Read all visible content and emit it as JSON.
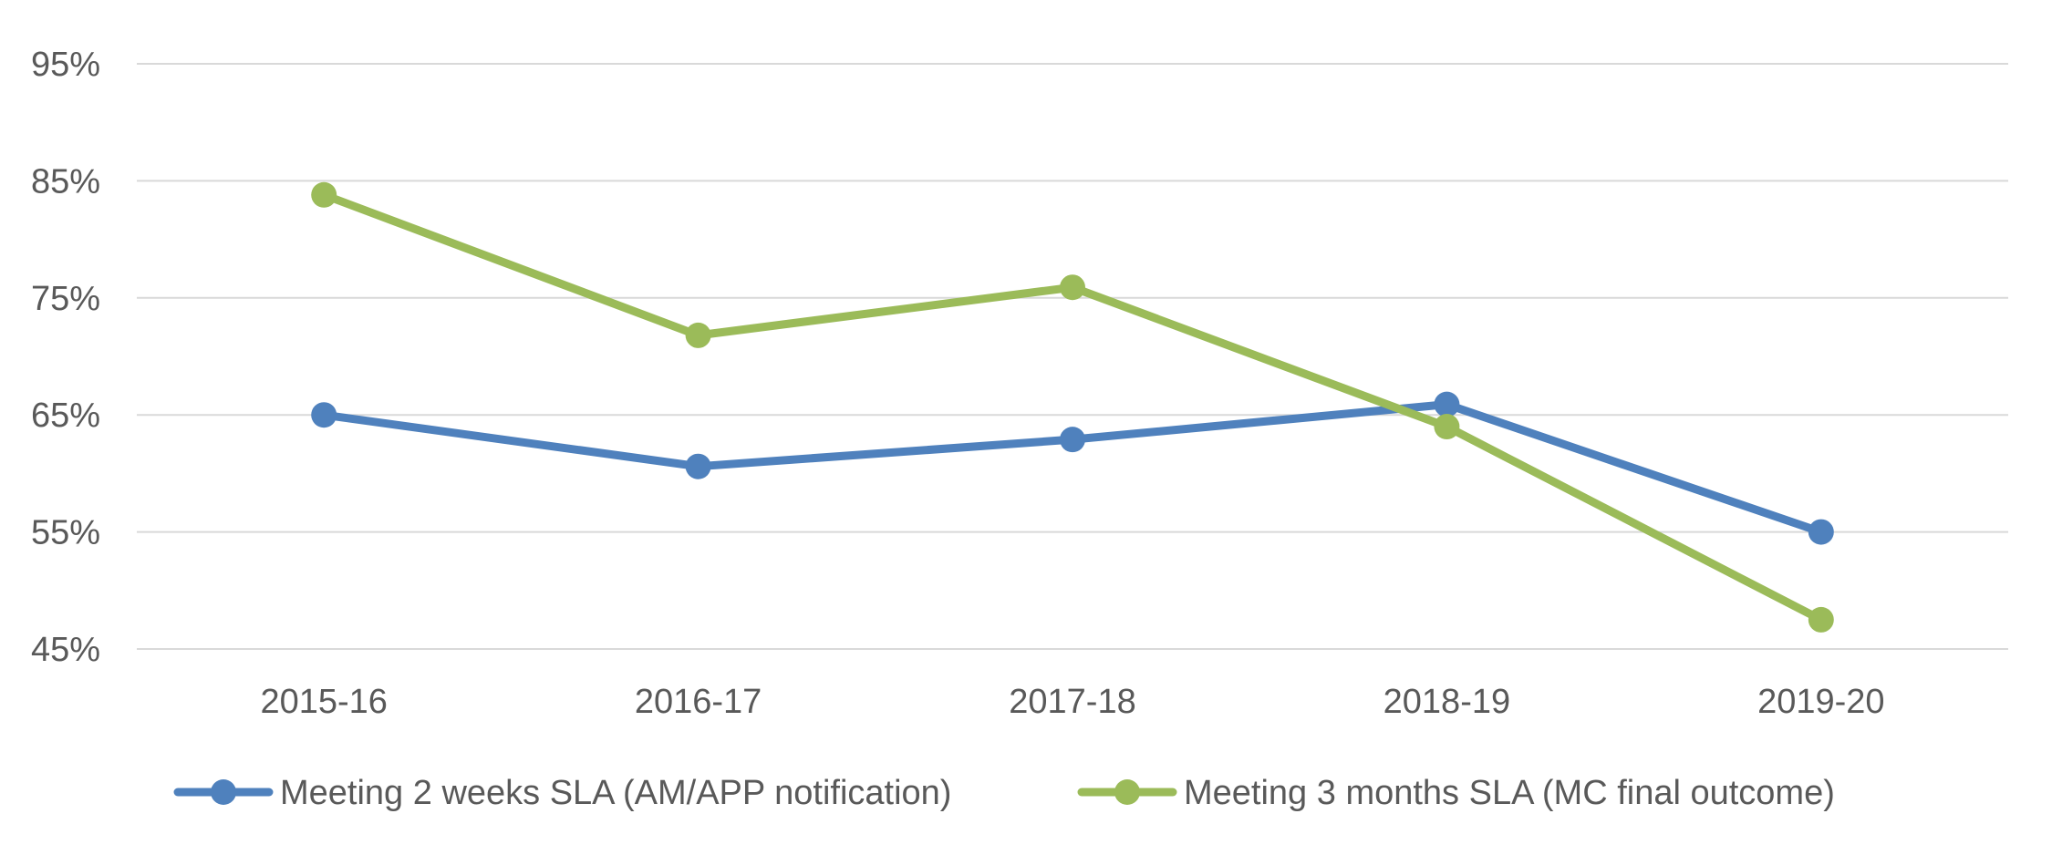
{
  "chart_data": {
    "type": "line",
    "title": "",
    "xlabel": "",
    "ylabel": "",
    "categories": [
      "2015-16",
      "2016-17",
      "2017-18",
      "2018-19",
      "2019-20"
    ],
    "y_ticks": [
      45,
      55,
      65,
      75,
      85,
      95
    ],
    "y_tick_labels": [
      "45%",
      "55%",
      "65%",
      "75%",
      "85%",
      "95%"
    ],
    "ylim": [
      45,
      95
    ],
    "grid": true,
    "legend_position": "bottom",
    "series": [
      {
        "name": "Meeting 2 weeks SLA (AM/APP notification)",
        "values": [
          65,
          60.6,
          62.9,
          65.9,
          55
        ],
        "color": "#4f81bd"
      },
      {
        "name": "Meeting 3 months SLA (MC final outcome)",
        "values": [
          83.8,
          71.8,
          75.9,
          64,
          47.5
        ],
        "color": "#9bbb59"
      }
    ]
  }
}
